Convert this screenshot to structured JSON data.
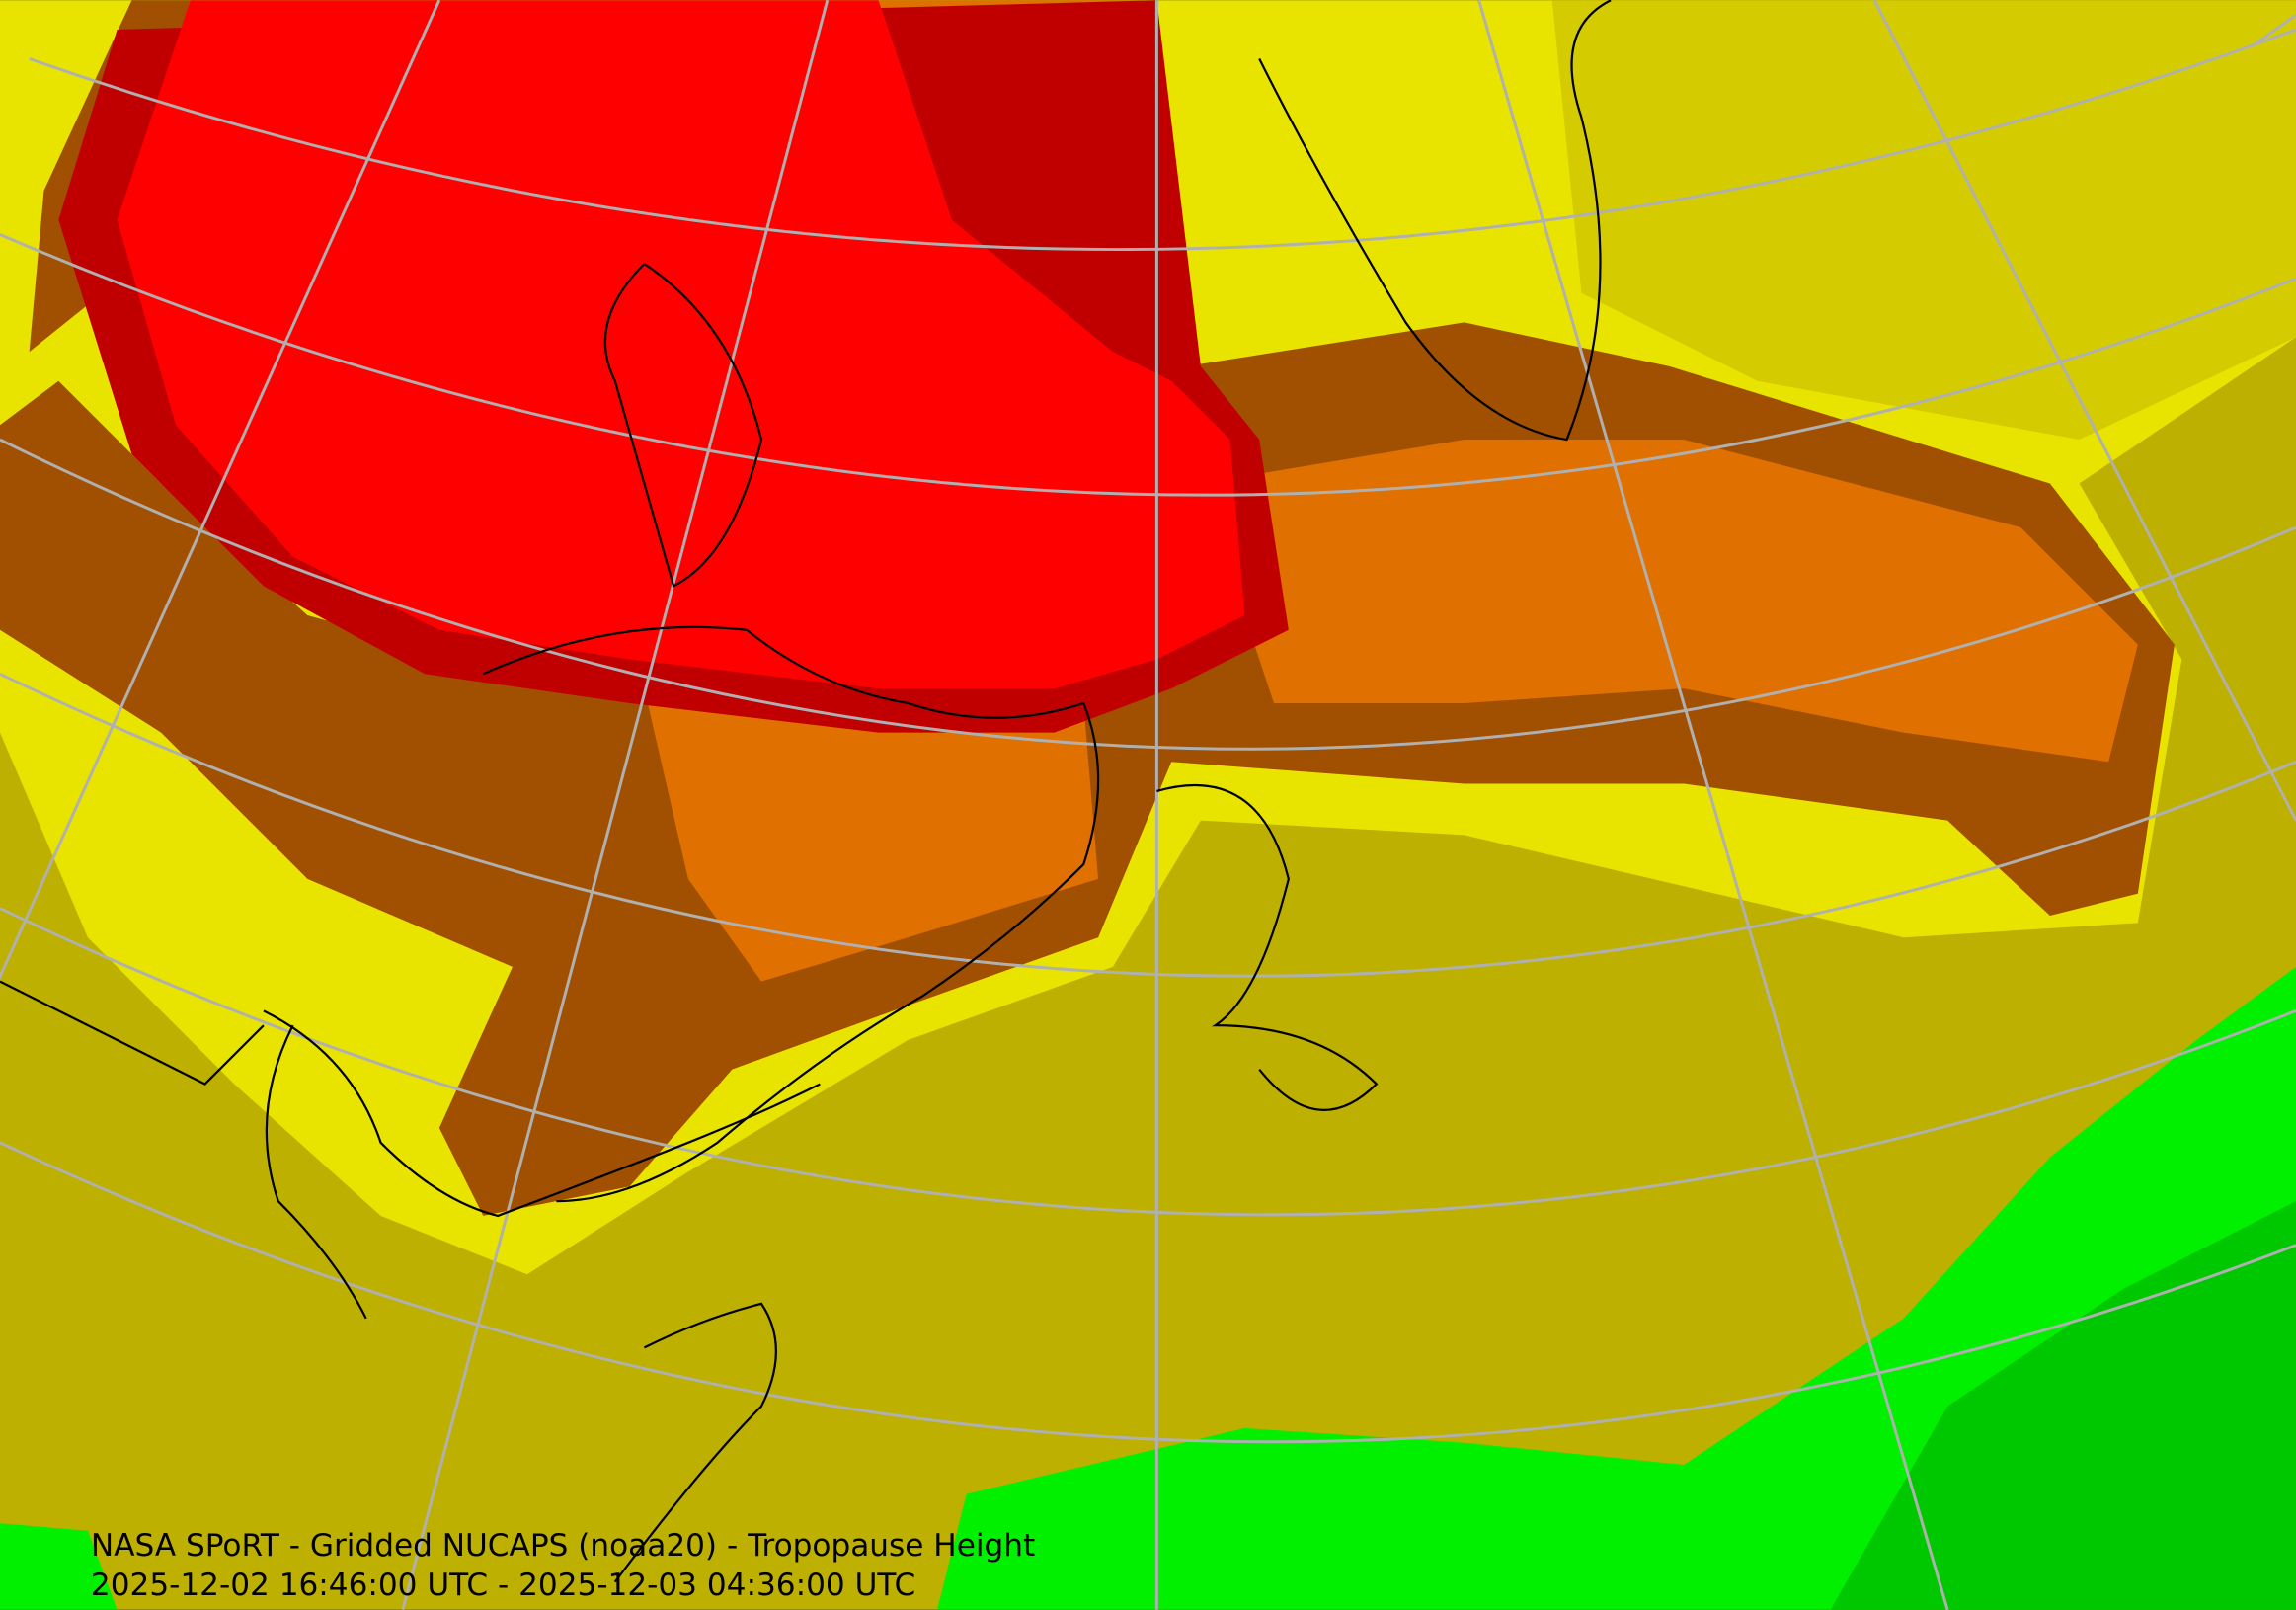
{
  "caption": {
    "title": "NASA SPoRT - Gridded NUCAPS (noaa20) - Tropopause Height",
    "time_range": "2025-12-02 16:46:00 UTC - 2025-12-03 04:36:00 UTC"
  }
}
